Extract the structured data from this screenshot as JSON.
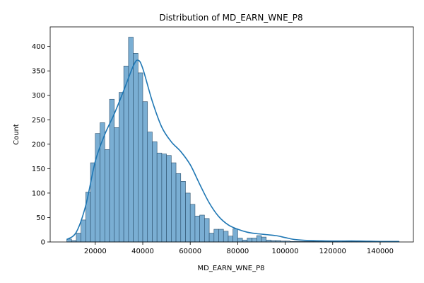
{
  "chart_data": {
    "type": "bar",
    "title": "Distribution of MD_EARN_WNE_P8",
    "xlabel": "MD_EARN_WNE_P8",
    "ylabel": "Count",
    "xlim": [
      1000,
      154000
    ],
    "ylim": [
      0,
      440
    ],
    "x_ticks": [
      20000,
      40000,
      60000,
      80000,
      100000,
      120000,
      140000
    ],
    "x_tick_labels": [
      "20000",
      "40000",
      "60000",
      "80000",
      "100000",
      "120000",
      "140000"
    ],
    "y_ticks": [
      0,
      50,
      100,
      150,
      200,
      250,
      300,
      350,
      400
    ],
    "y_tick_labels": [
      "0",
      "50",
      "100",
      "150",
      "200",
      "250",
      "300",
      "350",
      "400"
    ],
    "grid": false,
    "bin_start": 8000,
    "bin_width": 2000,
    "counts": [
      6,
      3,
      18,
      45,
      102,
      162,
      222,
      244,
      189,
      292,
      234,
      306,
      360,
      419,
      386,
      346,
      287,
      225,
      205,
      182,
      180,
      177,
      162,
      140,
      124,
      100,
      77,
      53,
      55,
      48,
      18,
      26,
      26,
      22,
      12,
      27,
      8,
      4,
      8,
      8,
      13,
      10,
      4,
      3,
      3,
      2,
      2,
      1,
      1,
      1,
      1,
      1,
      1,
      1,
      1,
      1,
      1,
      2,
      1,
      1,
      1,
      1,
      1,
      1,
      1,
      1,
      1,
      1,
      1,
      1
    ],
    "kde": {
      "x": [
        8000,
        12000,
        16000,
        20000,
        24000,
        28000,
        32000,
        36000,
        38000,
        40000,
        44000,
        48000,
        52000,
        56000,
        60000,
        64000,
        68000,
        72000,
        76000,
        80000,
        84000,
        88000,
        92000,
        96000,
        100000,
        104000,
        110000,
        120000,
        130000,
        140000,
        148000
      ],
      "y": [
        5,
        20,
        75,
        165,
        220,
        262,
        310,
        360,
        372,
        355,
        288,
        235,
        205,
        185,
        158,
        118,
        80,
        52,
        35,
        26,
        20,
        17,
        15,
        13,
        9,
        5,
        3,
        2,
        2,
        1,
        1
      ]
    },
    "colors": {
      "bar_fill": "#7aaed3",
      "bar_edge": "#2b4f6c",
      "kde_line": "#1f77b4",
      "axes": "#000000"
    }
  }
}
